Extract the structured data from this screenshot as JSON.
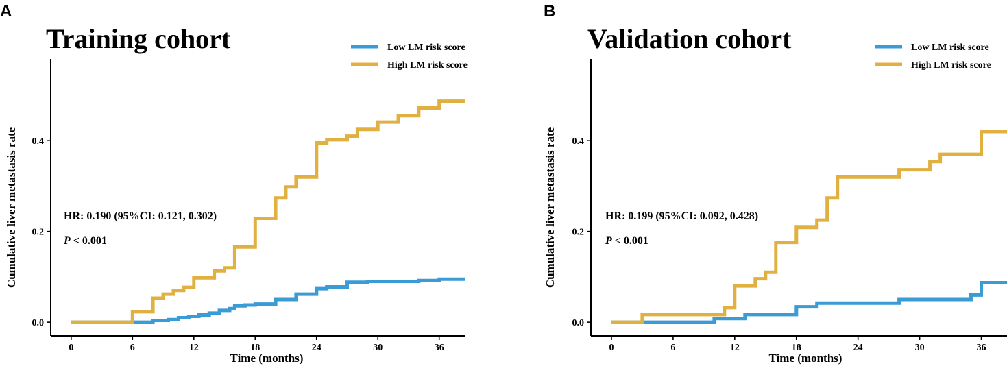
{
  "colors": {
    "low": "#3a9bd5",
    "high": "#e0b040"
  },
  "chart_data": [
    {
      "type": "line",
      "panel": "A",
      "title": "Training cohort",
      "xlabel": "Time (months)",
      "ylabel": "Cumulative liver metastasis rate",
      "xlim": [
        -2,
        38.5
      ],
      "ylim": [
        -0.03,
        0.58
      ],
      "xticks": [
        0,
        6,
        12,
        18,
        24,
        30,
        36
      ],
      "yticks": [
        0.0,
        0.2,
        0.4
      ],
      "legend_position": "top-right",
      "annotation_hr": "HR: 0.190 (95%CI: 0.121, 0.302)",
      "annotation_p_symbol": "P",
      "annotation_p_value": " < 0.001",
      "series": [
        {
          "name": "Low LM risk score",
          "color_key": "low",
          "steps": [
            [
              0,
              0
            ],
            [
              6,
              0
            ],
            [
              8,
              0.004
            ],
            [
              9.5,
              0.006
            ],
            [
              10.5,
              0.01
            ],
            [
              11.5,
              0.013
            ],
            [
              12.5,
              0.016
            ],
            [
              13.5,
              0.02
            ],
            [
              14.5,
              0.026
            ],
            [
              15.5,
              0.03
            ],
            [
              16,
              0.036
            ],
            [
              17,
              0.038
            ],
            [
              18,
              0.04
            ],
            [
              20,
              0.05
            ],
            [
              22,
              0.062
            ],
            [
              24,
              0.074
            ],
            [
              25,
              0.078
            ],
            [
              27,
              0.088
            ],
            [
              29,
              0.09
            ],
            [
              34,
              0.092
            ],
            [
              36,
              0.095
            ],
            [
              38.5,
              0.095
            ]
          ]
        },
        {
          "name": "High LM risk score",
          "color_key": "high",
          "steps": [
            [
              0,
              0
            ],
            [
              6,
              0.023
            ],
            [
              8,
              0.053
            ],
            [
              9,
              0.062
            ],
            [
              10,
              0.07
            ],
            [
              11,
              0.077
            ],
            [
              12,
              0.098
            ],
            [
              14,
              0.113
            ],
            [
              15,
              0.12
            ],
            [
              16,
              0.166
            ],
            [
              18,
              0.229
            ],
            [
              20,
              0.274
            ],
            [
              21,
              0.298
            ],
            [
              22,
              0.32
            ],
            [
              24,
              0.395
            ],
            [
              25,
              0.402
            ],
            [
              27,
              0.41
            ],
            [
              28,
              0.425
            ],
            [
              30,
              0.441
            ],
            [
              32,
              0.455
            ],
            [
              34,
              0.472
            ],
            [
              36,
              0.487
            ],
            [
              38.5,
              0.487
            ]
          ]
        }
      ]
    },
    {
      "type": "line",
      "panel": "B",
      "title": "Validation cohort",
      "xlabel": "Time (months)",
      "ylabel": "Cumulative liver metastasis rate",
      "xlim": [
        -2,
        38.5
      ],
      "ylim": [
        -0.03,
        0.58
      ],
      "xticks": [
        0,
        6,
        12,
        18,
        24,
        30,
        36
      ],
      "yticks": [
        0.0,
        0.2,
        0.4
      ],
      "legend_position": "top-right",
      "annotation_hr": "HR: 0.199 (95%CI: 0.092, 0.428)",
      "annotation_p_symbol": "P",
      "annotation_p_value": " < 0.001",
      "series": [
        {
          "name": "Low LM risk score",
          "color_key": "low",
          "steps": [
            [
              0,
              0
            ],
            [
              10,
              0.008
            ],
            [
              13,
              0.017
            ],
            [
              18,
              0.034
            ],
            [
              20,
              0.042
            ],
            [
              28,
              0.05
            ],
            [
              29,
              0.05
            ],
            [
              35,
              0.06
            ],
            [
              36,
              0.087
            ],
            [
              38.5,
              0.087
            ]
          ]
        },
        {
          "name": "High LM risk score",
          "color_key": "high",
          "steps": [
            [
              0,
              0
            ],
            [
              3,
              0.017
            ],
            [
              11,
              0.032
            ],
            [
              12,
              0.08
            ],
            [
              14,
              0.096
            ],
            [
              15,
              0.11
            ],
            [
              16,
              0.176
            ],
            [
              18,
              0.209
            ],
            [
              20,
              0.225
            ],
            [
              21,
              0.274
            ],
            [
              22,
              0.32
            ],
            [
              28,
              0.336
            ],
            [
              31,
              0.354
            ],
            [
              32,
              0.37
            ],
            [
              36,
              0.42
            ],
            [
              38.5,
              0.42
            ]
          ]
        }
      ]
    }
  ]
}
